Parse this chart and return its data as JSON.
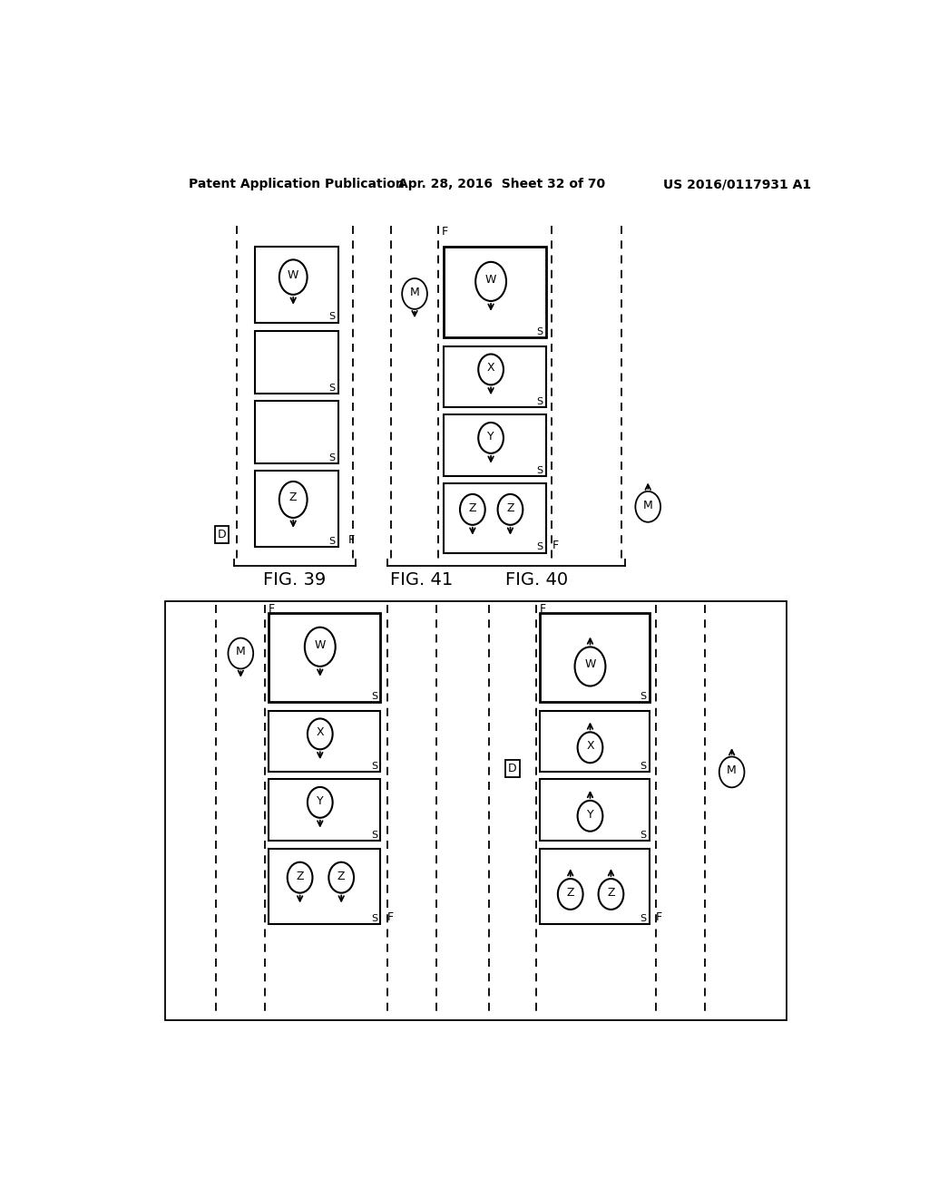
{
  "header_left": "Patent Application Publication",
  "header_mid": "Apr. 28, 2016  Sheet 32 of 70",
  "header_right": "US 2016/0117931 A1",
  "background": "#ffffff"
}
